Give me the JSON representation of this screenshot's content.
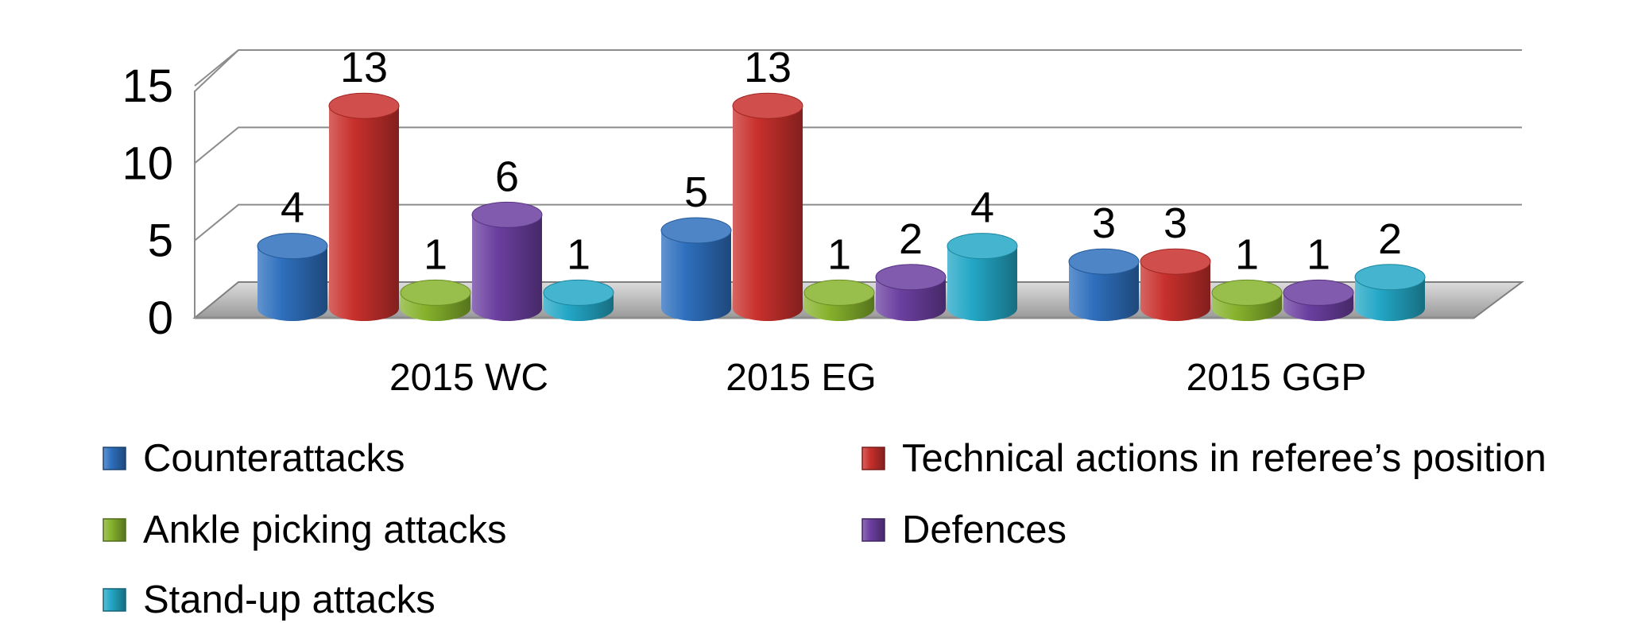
{
  "chart_data": {
    "type": "bar",
    "style": "3d-cylinder",
    "categories": [
      "2015 WC",
      "2015 EG",
      "2015 GGP"
    ],
    "series": [
      {
        "name": "Counterattacks",
        "values": [
          4,
          5,
          3
        ],
        "color": "#2e6fbd"
      },
      {
        "name": "Technical actions in referee’s position",
        "values": [
          13,
          13,
          3
        ],
        "color": "#c8302c"
      },
      {
        "name": "Ankle picking attacks",
        "values": [
          1,
          1,
          1
        ],
        "color": "#86b22c"
      },
      {
        "name": "Defences",
        "values": [
          6,
          2,
          1
        ],
        "color": "#6b3fa0"
      },
      {
        "name": "Stand-up attacks",
        "values": [
          1,
          4,
          2
        ],
        "color": "#23a7c6"
      }
    ],
    "yticks": [
      0,
      5,
      10,
      15
    ],
    "ylim": [
      0,
      15
    ],
    "grid": true,
    "data_labels": true,
    "legend_position": "bottom",
    "xlabel": "",
    "ylabel": "",
    "title": ""
  }
}
